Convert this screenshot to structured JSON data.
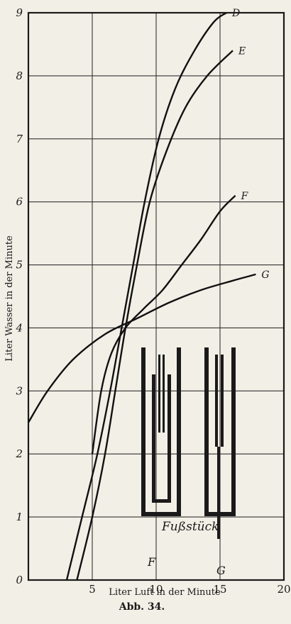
{
  "chart_data": {
    "type": "line",
    "xlabel": "Liter Luft in der Minute",
    "ylabel": "Liter Wasser in der Minute",
    "xlim": [
      0,
      20
    ],
    "ylim": [
      0,
      9
    ],
    "x_ticks": [
      "5",
      "10",
      "15",
      "20"
    ],
    "y_ticks": [
      "0",
      "1",
      "2",
      "3",
      "4",
      "5",
      "6",
      "7",
      "8",
      "9"
    ],
    "grid": true,
    "series": [
      {
        "name": "D",
        "points": [
          [
            3.0,
            0
          ],
          [
            4.2,
            1.0
          ],
          [
            5.4,
            2.0
          ],
          [
            6.4,
            3.0
          ],
          [
            7.3,
            4.0
          ],
          [
            8.2,
            5.0
          ],
          [
            9.1,
            6.0
          ],
          [
            10.2,
            7.0
          ],
          [
            11.5,
            7.8
          ],
          [
            13.0,
            8.4
          ],
          [
            14.5,
            8.85
          ],
          [
            15.5,
            9.0
          ]
        ]
      },
      {
        "name": "E",
        "points": [
          [
            3.8,
            0
          ],
          [
            5.0,
            1.0
          ],
          [
            6.0,
            2.0
          ],
          [
            6.8,
            3.0
          ],
          [
            7.6,
            4.0
          ],
          [
            8.5,
            5.0
          ],
          [
            9.5,
            6.0
          ],
          [
            10.8,
            6.8
          ],
          [
            12.3,
            7.5
          ],
          [
            14.0,
            8.0
          ],
          [
            16.0,
            8.4
          ]
        ]
      },
      {
        "name": "F",
        "points": [
          [
            5.0,
            2.0
          ],
          [
            5.7,
            3.0
          ],
          [
            6.5,
            3.6
          ],
          [
            7.6,
            4.0
          ],
          [
            9.0,
            4.3
          ],
          [
            10.5,
            4.6
          ],
          [
            12.0,
            5.0
          ],
          [
            13.5,
            5.4
          ],
          [
            15.0,
            5.85
          ],
          [
            16.2,
            6.1
          ]
        ]
      },
      {
        "name": "G",
        "points": [
          [
            0.0,
            2.5
          ],
          [
            1.5,
            3.0
          ],
          [
            3.5,
            3.5
          ],
          [
            6.0,
            3.9
          ],
          [
            8.5,
            4.15
          ],
          [
            11.0,
            4.4
          ],
          [
            13.5,
            4.6
          ],
          [
            16.0,
            4.75
          ],
          [
            17.8,
            4.85
          ]
        ]
      }
    ]
  },
  "caption": "Abb. 34.",
  "inset": {
    "label_F": "F",
    "label_G": "G",
    "label_foot": "Fußstück"
  }
}
